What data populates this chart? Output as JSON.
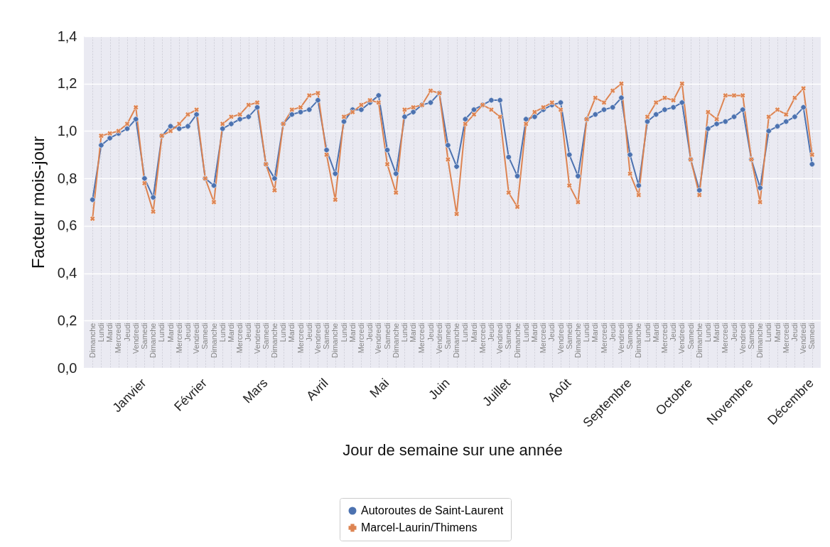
{
  "chart_data": {
    "type": "line",
    "xlabel": "Jour de semaine sur une année",
    "ylabel": "Facteur mois-jour",
    "categories": [
      "Dimanche",
      "Lundi",
      "Mardi",
      "Mercredi",
      "Jeudi",
      "Vendredi",
      "Samedi",
      "Dimanche",
      "Lundi",
      "Mardi",
      "Mercredi",
      "Jeudi",
      "Vendredi",
      "Samedi",
      "Dimanche",
      "Lundi",
      "Mardi",
      "Mercredi",
      "Jeudi",
      "Vendredi",
      "Samedi",
      "Dimanche",
      "Lundi",
      "Mardi",
      "Mercredi",
      "Jeudi",
      "Vendredi",
      "Samedi",
      "Dimanche",
      "Lundi",
      "Mardi",
      "Mercredi",
      "Jeudi",
      "Vendredi",
      "Samedi",
      "Dimanche",
      "Lundi",
      "Mardi",
      "Mercredi",
      "Jeudi",
      "Vendredi",
      "Samedi",
      "Dimanche",
      "Lundi",
      "Mardi",
      "Mercredi",
      "Jeudi",
      "Vendredi",
      "Samedi",
      "Dimanche",
      "Lundi",
      "Mardi",
      "Mercredi",
      "Jeudi",
      "Vendredi",
      "Samedi",
      "Dimanche",
      "Lundi",
      "Mardi",
      "Mercredi",
      "Jeudi",
      "Vendredi",
      "Samedi",
      "Dimanche",
      "Lundi",
      "Mardi",
      "Mercredi",
      "Jeudi",
      "Vendredi",
      "Samedi",
      "Dimanche",
      "Lundi",
      "Mardi",
      "Mercredi",
      "Jeudi",
      "Vendredi",
      "Samedi",
      "Dimanche",
      "Lundi",
      "Mardi",
      "Mercredi",
      "Jeudi",
      "Vendredi",
      "Samedi"
    ],
    "series": [
      {
        "name": "Autoroutes de Saint-Laurent",
        "color": "#4c72b0",
        "marker": "circle",
        "values": [
          0.71,
          0.94,
          0.97,
          0.99,
          1.01,
          1.05,
          0.8,
          0.72,
          0.98,
          1.02,
          1.01,
          1.02,
          1.07,
          0.8,
          0.77,
          1.01,
          1.03,
          1.05,
          1.06,
          1.1,
          0.86,
          0.8,
          1.03,
          1.07,
          1.08,
          1.09,
          1.13,
          0.92,
          0.82,
          1.04,
          1.09,
          1.09,
          1.12,
          1.15,
          0.92,
          0.82,
          1.06,
          1.08,
          1.11,
          1.12,
          1.16,
          0.94,
          0.85,
          1.05,
          1.09,
          1.11,
          1.13,
          1.13,
          0.89,
          0.81,
          1.05,
          1.06,
          1.09,
          1.11,
          1.12,
          0.9,
          0.81,
          1.05,
          1.07,
          1.09,
          1.1,
          1.14,
          0.9,
          0.77,
          1.04,
          1.07,
          1.09,
          1.1,
          1.12,
          0.88,
          0.75,
          1.01,
          1.03,
          1.04,
          1.06,
          1.09,
          0.88,
          0.76,
          1.0,
          1.02,
          1.04,
          1.06,
          1.1,
          0.86
        ]
      },
      {
        "name": "Marcel-Laurin/Thimens",
        "color": "#dd8452",
        "marker": "cross",
        "values": [
          0.63,
          0.98,
          0.99,
          1.0,
          1.03,
          1.1,
          0.78,
          0.66,
          0.98,
          1.0,
          1.03,
          1.07,
          1.09,
          0.8,
          0.7,
          1.03,
          1.06,
          1.07,
          1.11,
          1.12,
          0.86,
          0.75,
          1.03,
          1.09,
          1.1,
          1.15,
          1.16,
          0.9,
          0.71,
          1.06,
          1.08,
          1.11,
          1.13,
          1.12,
          0.86,
          0.74,
          1.09,
          1.1,
          1.11,
          1.17,
          1.16,
          0.88,
          0.65,
          1.03,
          1.07,
          1.11,
          1.09,
          1.06,
          0.74,
          0.68,
          1.03,
          1.08,
          1.1,
          1.12,
          1.09,
          0.77,
          0.7,
          1.05,
          1.14,
          1.12,
          1.17,
          1.2,
          0.82,
          0.73,
          1.06,
          1.12,
          1.14,
          1.13,
          1.2,
          0.88,
          0.73,
          1.08,
          1.05,
          1.15,
          1.15,
          1.15,
          0.88,
          0.7,
          1.06,
          1.09,
          1.07,
          1.14,
          1.18,
          0.9
        ]
      }
    ],
    "ylim": [
      0,
      1.4
    ],
    "yticks": [
      {
        "value": 0,
        "label": "0,0"
      },
      {
        "value": 0.2,
        "label": "0,2"
      },
      {
        "value": 0.4,
        "label": "0,4"
      },
      {
        "value": 0.6,
        "label": "0,6"
      },
      {
        "value": 0.8,
        "label": "0,8"
      },
      {
        "value": 1,
        "label": "1,0"
      },
      {
        "value": 1.2,
        "label": "1,2"
      },
      {
        "value": 1.4,
        "label": "1,4"
      }
    ],
    "grid": true,
    "legend": "bottom",
    "annotations": [
      "Janvier",
      "Février",
      "Mars",
      "Avril",
      "Mai",
      "Juin",
      "Juillet",
      "Août",
      "Septembre",
      "Octobre",
      "Novembre",
      "Décembre"
    ]
  }
}
